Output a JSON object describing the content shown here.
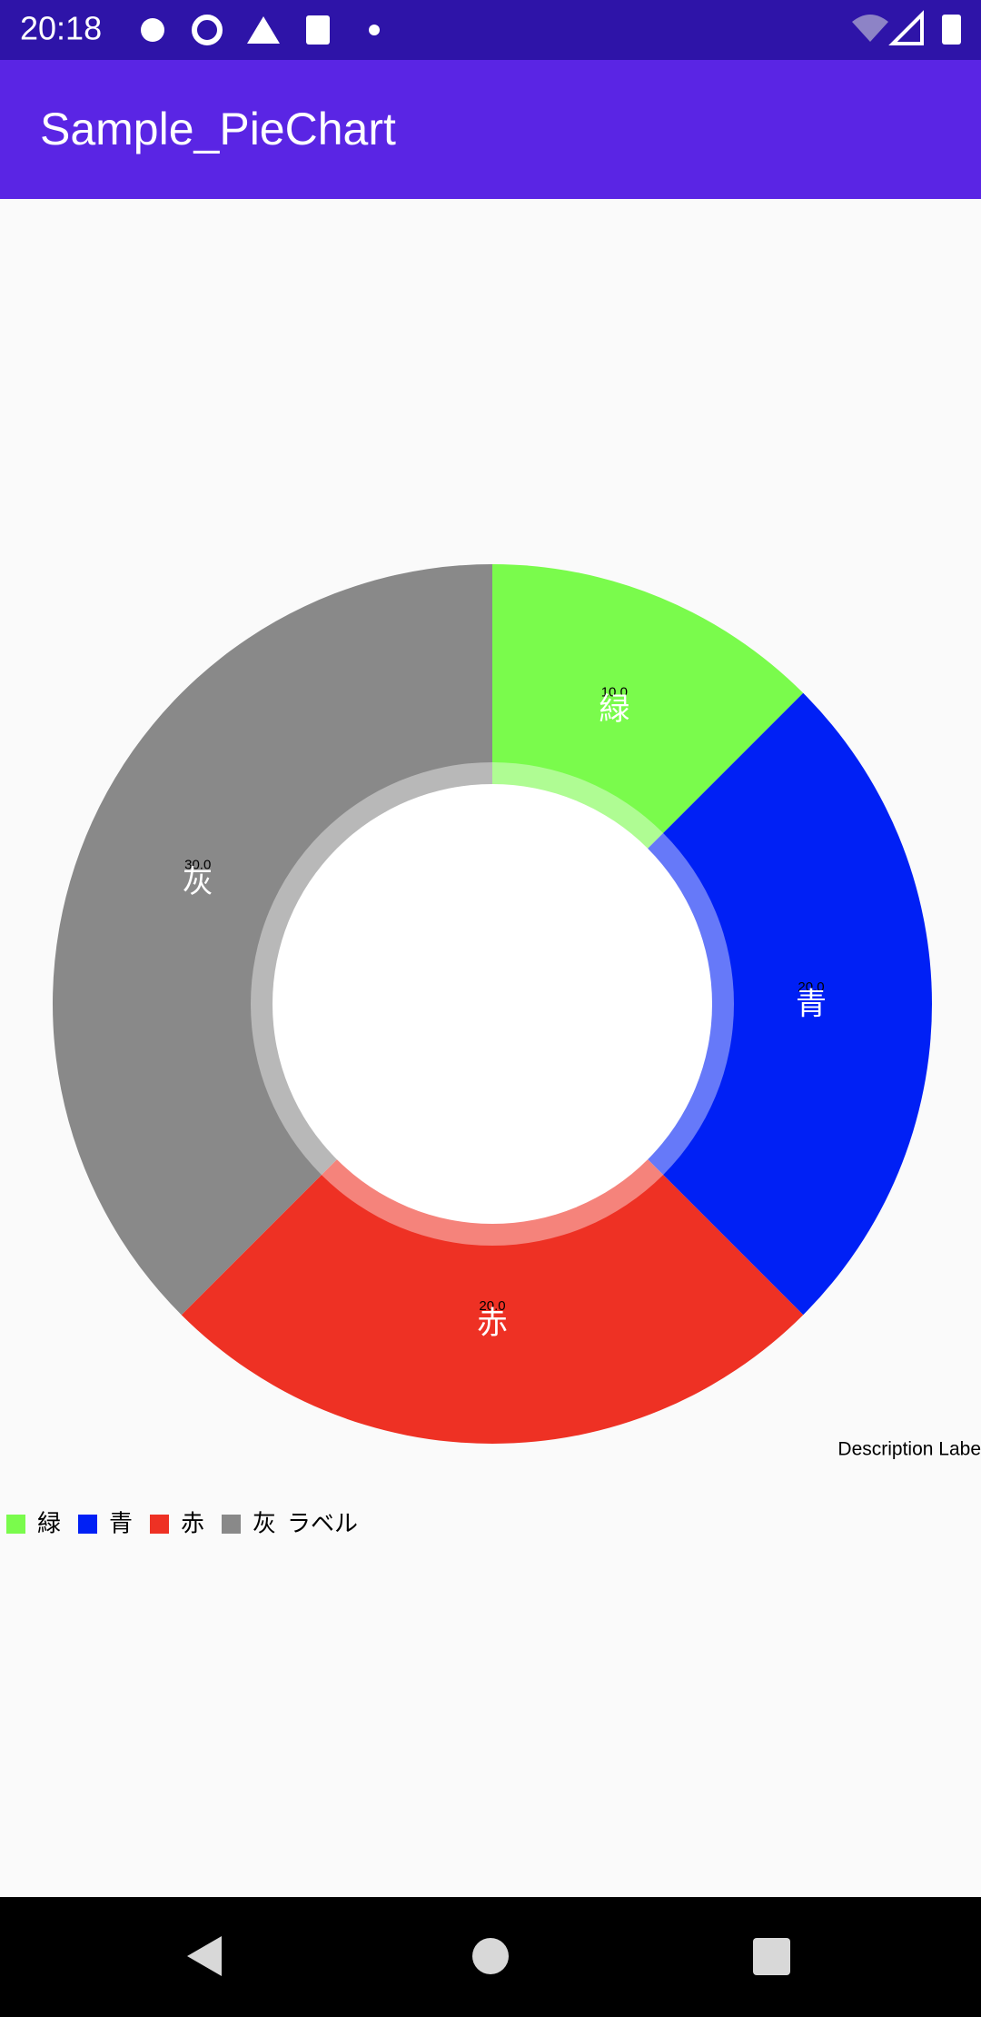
{
  "status_bar": {
    "time": "20:18"
  },
  "app_bar": {
    "title": "Sample_PieChart"
  },
  "chart_data": {
    "type": "pie",
    "categories": [
      "緑",
      "青",
      "赤",
      "灰"
    ],
    "values": [
      10,
      20,
      20,
      30
    ],
    "value_labels": [
      "10.0",
      "20.0",
      "20.0",
      "30.0"
    ],
    "colors": [
      "#7afb4c",
      "#0020f5",
      "#ee3124",
      "#898989"
    ],
    "series_label": "ラベル",
    "description": "Description Labe",
    "hole": true
  }
}
